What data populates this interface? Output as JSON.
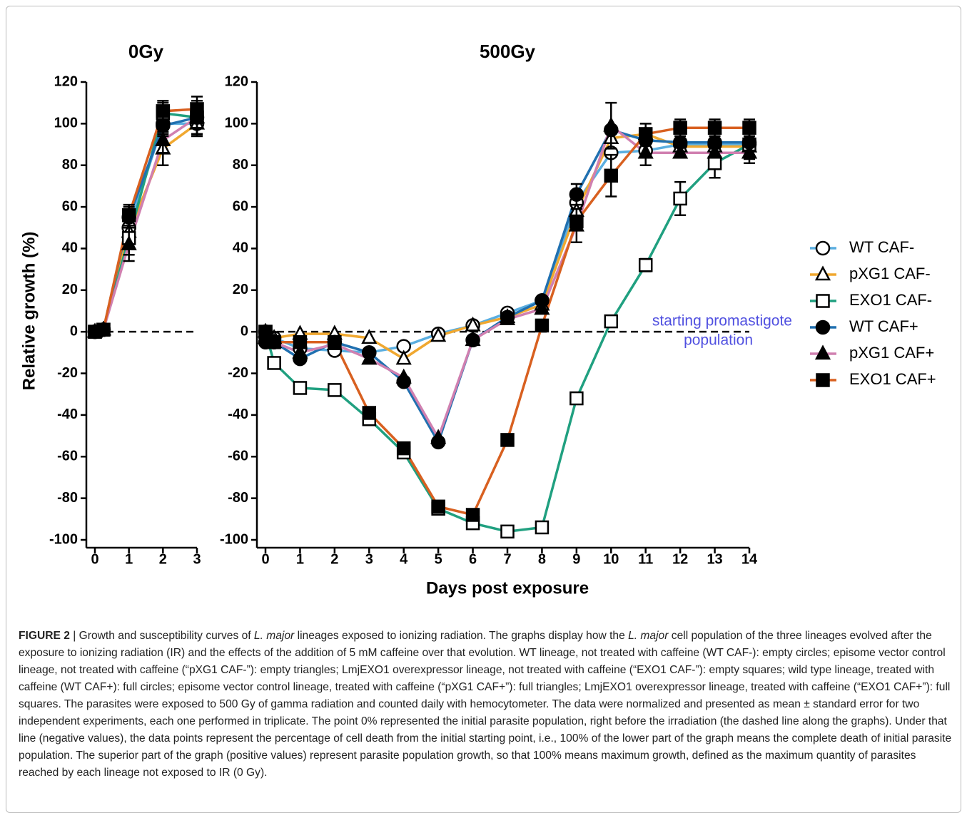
{
  "chart_data": [
    {
      "type": "line",
      "title": "0Gy",
      "y_label": "Relative growth (%)",
      "x": [
        0,
        0.25,
        1,
        2,
        3
      ],
      "xlim": [
        0,
        3
      ],
      "xticks": [
        0,
        1,
        2,
        3
      ],
      "ylim": [
        -100,
        120
      ],
      "yticks": [
        -100,
        -80,
        -60,
        -40,
        -20,
        0,
        20,
        40,
        60,
        80,
        100,
        120
      ],
      "reference_line": 0,
      "series": [
        {
          "name": "WT CAF-",
          "color": "#5aaee0",
          "marker": "circle",
          "filled": false,
          "values": [
            0,
            1,
            50,
            100,
            100
          ],
          "errors": [
            null,
            null,
            6,
            5,
            6
          ]
        },
        {
          "name": "pXG1 CAF-",
          "color": "#f0a830",
          "marker": "triangle",
          "filled": false,
          "values": [
            0,
            1,
            48,
            88,
            100
          ],
          "errors": [
            null,
            null,
            6,
            8,
            6
          ]
        },
        {
          "name": "EXO1 CAF-",
          "color": "#20a080",
          "marker": "square",
          "filled": false,
          "values": [
            0,
            1,
            45,
            105,
            103
          ],
          "errors": [
            null,
            null,
            8,
            5,
            8
          ]
        },
        {
          "name": "WT CAF+",
          "color": "#2070b0",
          "marker": "circle",
          "filled": true,
          "values": [
            0,
            1,
            55,
            99,
            103
          ],
          "errors": [
            null,
            null,
            5,
            5,
            5
          ]
        },
        {
          "name": "pXG1 CAF+",
          "color": "#d080b0",
          "marker": "triangle",
          "filled": true,
          "values": [
            0,
            1,
            42,
            92,
            103
          ],
          "errors": [
            null,
            null,
            8,
            6,
            8
          ]
        },
        {
          "name": "EXO1 CAF+",
          "color": "#d86020",
          "marker": "square",
          "filled": true,
          "values": [
            0,
            1,
            56,
            106,
            107
          ],
          "errors": [
            null,
            null,
            5,
            5,
            6
          ]
        }
      ]
    },
    {
      "type": "line",
      "title": "500Gy",
      "x_label": "Days post exposure",
      "x": [
        0,
        0.25,
        1,
        2,
        3,
        4,
        5,
        6,
        7,
        8,
        9,
        10,
        11,
        12,
        13,
        14
      ],
      "xlim": [
        0,
        14
      ],
      "xticks": [
        0,
        1,
        2,
        3,
        4,
        5,
        6,
        7,
        8,
        9,
        10,
        11,
        12,
        13,
        14
      ],
      "ylim": [
        -100,
        120
      ],
      "yticks": [
        -100,
        -80,
        -60,
        -40,
        -20,
        0,
        20,
        40,
        60,
        80,
        100,
        120
      ],
      "reference_line": 0,
      "annotation": [
        "starting promastigote",
        "population"
      ],
      "annotation_color": "#5050e0",
      "legend": "right",
      "series": [
        {
          "name": "WT CAF-",
          "color": "#5aaee0",
          "marker": "circle",
          "filled": false,
          "values": [
            0,
            -3,
            -8,
            -9,
            -10,
            -7,
            -1,
            3,
            9,
            15,
            62,
            86,
            87,
            90,
            90,
            90
          ],
          "errors": [
            null,
            null,
            null,
            null,
            null,
            null,
            null,
            null,
            null,
            null,
            null,
            null,
            null,
            null,
            null,
            null
          ]
        },
        {
          "name": "pXG1 CAF-",
          "color": "#f0a830",
          "marker": "triangle",
          "filled": false,
          "values": [
            0,
            -3,
            -1,
            -1,
            -3,
            -13,
            -2,
            3,
            7,
            13,
            58,
            93,
            95,
            89,
            89,
            89
          ],
          "errors": [
            null,
            null,
            null,
            null,
            null,
            null,
            null,
            null,
            null,
            null,
            null,
            null,
            null,
            null,
            null,
            null
          ]
        },
        {
          "name": "EXO1 CAF-",
          "color": "#20a080",
          "marker": "square",
          "filled": false,
          "values": [
            0,
            -15,
            -27,
            -28,
            -42,
            -58,
            -85,
            -92,
            -96,
            -94,
            -32,
            5,
            32,
            64,
            81,
            90
          ],
          "errors": [
            null,
            null,
            null,
            null,
            null,
            null,
            null,
            null,
            null,
            null,
            null,
            null,
            3,
            8,
            7,
            7
          ]
        },
        {
          "name": "WT CAF+",
          "color": "#2070b0",
          "marker": "circle",
          "filled": true,
          "values": [
            -5,
            -5,
            -13,
            -5,
            -10,
            -24,
            -53,
            -4,
            7,
            15,
            66,
            97,
            92,
            91,
            91,
            91
          ],
          "errors": [
            null,
            null,
            null,
            null,
            null,
            null,
            null,
            null,
            null,
            null,
            5,
            null,
            null,
            null,
            null,
            null
          ]
        },
        {
          "name": "pXG1 CAF+",
          "color": "#d080b0",
          "marker": "triangle",
          "filled": true,
          "values": [
            -3,
            -5,
            -10,
            -6,
            -13,
            -22,
            -51,
            -4,
            6,
            11,
            51,
            99,
            86,
            86,
            86,
            86
          ],
          "errors": [
            null,
            null,
            null,
            null,
            null,
            null,
            null,
            null,
            null,
            null,
            8,
            11,
            6,
            null,
            null,
            5
          ]
        },
        {
          "name": "EXO1 CAF+",
          "color": "#d86020",
          "marker": "square",
          "filled": true,
          "values": [
            0,
            -5,
            -5,
            -5,
            -39,
            -56,
            -84,
            -88,
            -52,
            3,
            53,
            75,
            95,
            98,
            98,
            98
          ],
          "errors": [
            null,
            null,
            null,
            null,
            null,
            null,
            null,
            null,
            null,
            null,
            null,
            10,
            5,
            4,
            4,
            4
          ]
        }
      ]
    }
  ],
  "caption": {
    "parts": [
      "FIGURE 2",
      " | Growth and susceptibility curves of ",
      "L. major",
      " lineages exposed to ionizing radiation. The graphs display how the ",
      "L. major",
      " cell population of the three lineages evolved after the exposure to ionizing radiation (IR) and the effects of the addition of 5 mM caffeine over that evolution. WT lineage, not treated with caffeine (WT CAF-): empty circles; episome vector control lineage, not treated with caffeine (“pXG1 CAF-”): empty triangles; LmjEXO1 overexpressor lineage, not treated with caffeine (“EXO1 CAF-”): empty squares; wild type lineage, treated with caffeine (WT CAF+): full circles; episome vector control lineage, treated with caffeine (“pXG1 CAF+”): full triangles; LmjEXO1 overexpressor lineage, treated with caffeine (“EXO1 CAF+”): full squares. The parasites were exposed to 500 Gy of gamma radiation and counted daily with hemocytometer. The data were normalized and presented as mean ± standard error for two independent experiments, each one performed in triplicate. The point 0% represented the initial parasite population, right before the irradiation (the dashed line along the graphs). Under that line (negative values), the data points represent the percentage of cell death from the initial starting point, i.e., 100% of the lower part of the graph means the complete death of initial parasite population. The superior part of the graph (positive values) represent parasite population growth, so that 100% means maximum growth, defined as the maximum quantity of parasites reached by each lineage not exposed to IR (0 Gy)."
    ]
  }
}
